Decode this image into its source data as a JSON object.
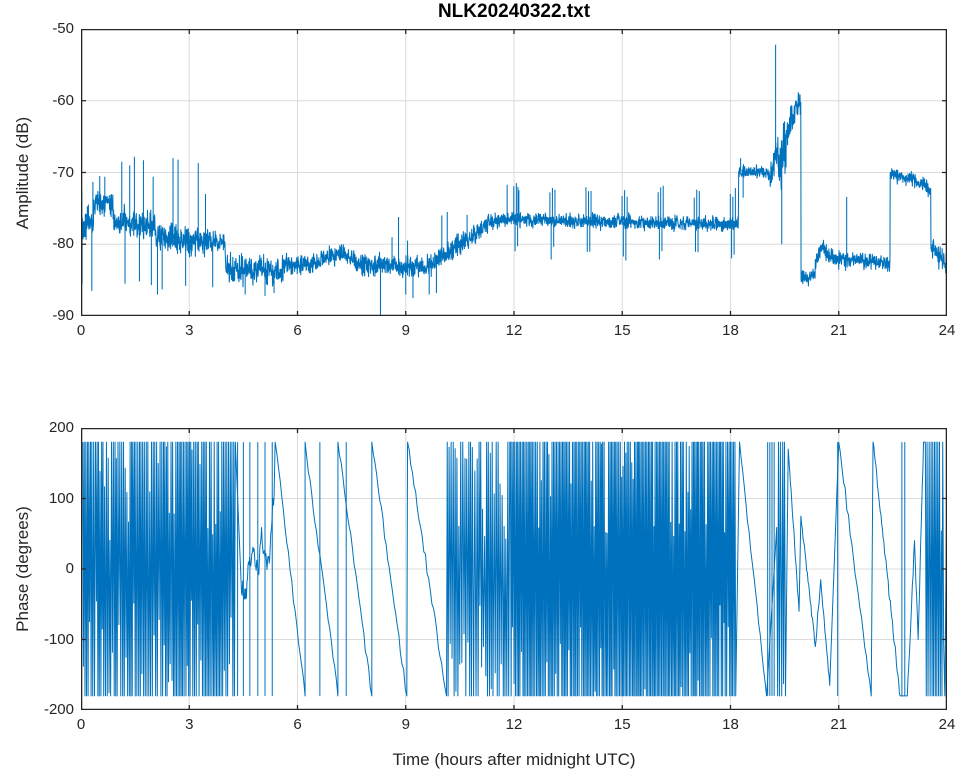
{
  "figure": {
    "title": "NLK20240322.txt",
    "background": "#ffffff"
  },
  "colors": {
    "line": "#0072BD",
    "grid": "#dcdcdc",
    "axis": "#262626",
    "tick_text": "#262626",
    "title_text": "#000000"
  },
  "chart_data": [
    {
      "type": "line",
      "title": "NLK20240322.txt",
      "ylabel": "Amplitude (dB)",
      "xlabel": "",
      "xlim": [
        0,
        24
      ],
      "ylim": [
        -90,
        -50
      ],
      "xticks": [
        0,
        3,
        6,
        9,
        12,
        15,
        18,
        21,
        24
      ],
      "xtick_labels": [
        "0",
        "3",
        "6",
        "9",
        "12",
        "15",
        "18",
        "21",
        "24"
      ],
      "yticks": [
        -50,
        -60,
        -70,
        -80,
        -90
      ],
      "ytick_labels": [
        "-50",
        "-60",
        "-70",
        "-80",
        "-90"
      ],
      "grid": true,
      "line_color": "#0072BD",
      "segments": [
        [
          0.0,
          0.35,
          -77.0,
          -77.0,
          2.4
        ],
        [
          0.35,
          0.9,
          -74.2,
          -74.5,
          1.6
        ],
        [
          0.9,
          2.05,
          -77.0,
          -77.5,
          2.0
        ],
        [
          2.05,
          3.0,
          -79.0,
          -79.5,
          2.0
        ],
        [
          3.0,
          3.55,
          -79.5,
          -79.5,
          1.9
        ],
        [
          3.55,
          4.0,
          -79.5,
          -79.8,
          1.7
        ],
        [
          4.0,
          5.6,
          -83.3,
          -83.8,
          1.9
        ],
        [
          5.6,
          6.6,
          -82.8,
          -82.8,
          1.5
        ],
        [
          6.6,
          7.2,
          -82.3,
          -81.2,
          1.4
        ],
        [
          7.2,
          7.6,
          -81.2,
          -82.2,
          1.4
        ],
        [
          7.6,
          9.5,
          -82.8,
          -83.2,
          1.5
        ],
        [
          9.5,
          11.3,
          -83.5,
          -77.2,
          1.5
        ],
        [
          11.3,
          11.6,
          -77.2,
          -76.6,
          1.0
        ],
        [
          11.6,
          18.22,
          -76.5,
          -77.2,
          1.0
        ],
        [
          18.22,
          19.1,
          -69.8,
          -70.2,
          0.9
        ],
        [
          19.1,
          19.32,
          -70.0,
          -66.0,
          2.5
        ],
        [
          19.32,
          19.55,
          -70.0,
          -66.0,
          4.5
        ],
        [
          19.55,
          19.78,
          -65.0,
          -60.8,
          2.6
        ],
        [
          19.78,
          19.95,
          -60.5,
          -60.5,
          1.6
        ],
        [
          19.95,
          20.35,
          -84.8,
          -84.2,
          1.2
        ],
        [
          20.35,
          20.55,
          -82.5,
          -80.2,
          1.1
        ],
        [
          20.55,
          20.8,
          -80.5,
          -82.0,
          1.1
        ],
        [
          20.8,
          22.42,
          -82.0,
          -82.6,
          1.1
        ],
        [
          22.42,
          23.1,
          -70.2,
          -71.0,
          1.0
        ],
        [
          23.1,
          23.55,
          -71.0,
          -72.5,
          1.0
        ],
        [
          23.55,
          24.0,
          -80.5,
          -82.8,
          1.5
        ]
      ],
      "spikes": [
        [
          0.02,
          -72.5
        ],
        [
          0.03,
          -85.5
        ],
        [
          0.3,
          -86.5
        ],
        [
          0.33,
          -71.3
        ],
        [
          0.52,
          -70.5
        ],
        [
          0.66,
          -70.6
        ],
        [
          1.13,
          -68.5
        ],
        [
          1.22,
          -85.5
        ],
        [
          1.35,
          -69.0
        ],
        [
          1.48,
          -67.8
        ],
        [
          1.62,
          -85.2
        ],
        [
          1.73,
          -68.3
        ],
        [
          1.95,
          -85.7
        ],
        [
          2.0,
          -70.6
        ],
        [
          2.12,
          -87.0
        ],
        [
          2.25,
          -86.3
        ],
        [
          2.55,
          -68.0
        ],
        [
          2.69,
          -68.2
        ],
        [
          2.9,
          -85.8
        ],
        [
          3.25,
          -68.7
        ],
        [
          3.45,
          -73.0
        ],
        [
          3.65,
          -86.0
        ],
        [
          4.55,
          -87.0
        ],
        [
          5.1,
          -87.2
        ],
        [
          5.35,
          -86.8
        ],
        [
          8.3,
          -90.0
        ],
        [
          8.62,
          -79.0
        ],
        [
          8.8,
          -76.2
        ],
        [
          9.0,
          -87.0
        ],
        [
          9.05,
          -79.5
        ],
        [
          9.2,
          -87.5
        ],
        [
          9.65,
          -87.0
        ],
        [
          9.85,
          -86.8
        ],
        [
          10.0,
          -76.0
        ],
        [
          10.15,
          -75.5
        ],
        [
          10.7,
          -75.9
        ],
        [
          11.81,
          -71.7
        ],
        [
          12.11,
          -72.0
        ],
        [
          18.28,
          -68.0
        ],
        [
          18.35,
          -73.5
        ],
        [
          19.25,
          -52.2
        ],
        [
          19.42,
          -80.0
        ],
        [
          21.22,
          -73.4
        ]
      ],
      "burst_clusters": {
        "centers": [
          12.05,
          13.05,
          14.05,
          15.05,
          16.05,
          17.05,
          18.05
        ],
        "offsets": [
          -0.055,
          -0.02,
          0.015,
          0.05,
          0.085
        ],
        "up": 4.3,
        "down": 4.6
      }
    },
    {
      "type": "line",
      "ylabel": "Phase (degrees)",
      "xlabel": "Time (hours after midnight UTC)",
      "xlim": [
        0,
        24
      ],
      "ylim": [
        -200,
        200
      ],
      "xticks": [
        0,
        3,
        6,
        9,
        12,
        15,
        18,
        21,
        24
      ],
      "xtick_labels": [
        "0",
        "3",
        "6",
        "9",
        "12",
        "15",
        "18",
        "21",
        "24"
      ],
      "yticks": [
        200,
        100,
        0,
        -100,
        -200
      ],
      "ytick_labels": [
        "200",
        "100",
        "0",
        "-100",
        "-200"
      ],
      "grid": true,
      "line_color": "#0072BD",
      "wrap_limit_degrees": 180,
      "path_segments": [
        {
          "type": "dense",
          "t0": 0.05,
          "t1": 4.28,
          "step": 0.022,
          "full": 0.8
        },
        {
          "type": "wander",
          "t0": 4.45,
          "t1": 5.35,
          "v0": -20,
          "v1": 70,
          "spread": 60
        },
        {
          "type": "ramp",
          "t0": 5.38,
          "t1": 6.21,
          "v0": 180,
          "v1": -180
        },
        {
          "type": "ramp",
          "t0": 6.21,
          "t1": 7.12,
          "v0": 180,
          "v1": -180
        },
        {
          "type": "ramp",
          "t0": 7.12,
          "t1": 8.06,
          "v0": 180,
          "v1": -180
        },
        {
          "type": "ramp",
          "t0": 8.06,
          "t1": 9.03,
          "v0": 180,
          "v1": -180
        },
        {
          "type": "ramp",
          "t0": 9.05,
          "t1": 10.13,
          "v0": 180,
          "v1": -180
        },
        {
          "type": "dense",
          "t0": 10.15,
          "t1": 11.9,
          "step": 0.028,
          "full": 0.55
        },
        {
          "type": "dense",
          "t0": 11.9,
          "t1": 18.15,
          "step": 0.02,
          "full": 0.82
        },
        {
          "type": "ramp",
          "t0": 18.25,
          "t1": 19.0,
          "v0": 180,
          "v1": -180
        },
        {
          "type": "dense",
          "t0": 19.28,
          "t1": 19.55,
          "step": 0.03,
          "full": 0.85
        },
        {
          "type": "zigzag",
          "pts": [
            [
              19.6,
              170
            ],
            [
              19.9,
              -60
            ],
            [
              19.95,
              75
            ],
            [
              20.35,
              -110
            ],
            [
              20.5,
              -15
            ],
            [
              20.75,
              -165
            ]
          ]
        },
        {
          "type": "ramp",
          "t0": 21.0,
          "t1": 21.9,
          "v0": 180,
          "v1": -180
        },
        {
          "type": "zigzag",
          "pts": [
            [
              21.95,
              180
            ],
            [
              22.45,
              -60
            ],
            [
              22.7,
              -180
            ]
          ]
        },
        {
          "type": "zigzag",
          "pts": [
            [
              22.9,
              -180
            ],
            [
              23.1,
              40
            ],
            [
              23.2,
              -100
            ],
            [
              23.35,
              180
            ]
          ]
        },
        {
          "type": "dense",
          "t0": 23.4,
          "t1": 23.92,
          "step": 0.025,
          "full": 0.75
        },
        {
          "type": "zigzag",
          "pts": [
            [
              23.94,
              -180
            ],
            [
              24.0,
              130
            ]
          ]
        }
      ],
      "vlines": [
        4.34,
        4.5,
        4.68,
        4.9,
        5.1,
        5.3,
        6.62,
        7.35,
        19.03,
        19.09,
        19.15,
        19.21,
        20.97,
        22.75,
        22.83
      ]
    }
  ]
}
